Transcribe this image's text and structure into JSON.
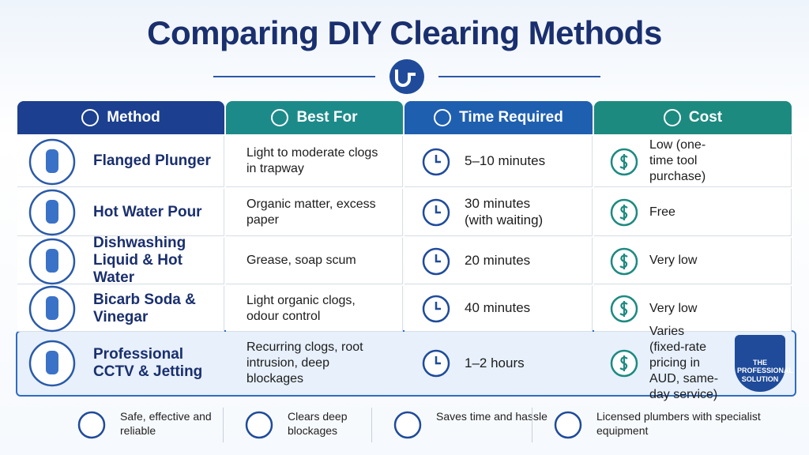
{
  "header": {
    "title": "Comparing DIY Clearing Methods"
  },
  "table": {
    "columns": [
      "Method",
      "Best For",
      "Time Required",
      "Cost"
    ],
    "rows": [
      [
        "Flanged Plunger",
        "Light to moderate clogs in trapway",
        "5–10 minutes",
        "Low (one-time tool purchase)"
      ],
      [
        "Hot Water Pour",
        "Organic matter, excess paper",
        "30 minutes (with waiting)",
        "Free"
      ],
      [
        "Dishwashing Liquid & Hot Water",
        "Grease, soap scum",
        "20 minutes",
        "Very low"
      ],
      [
        "Bicarb Soda & Vinegar",
        "Light organic clogs, odour control",
        "40 minutes",
        "Very low"
      ],
      [
        "Professional CCTV & Jetting",
        "Recurring clogs, root intrusion, deep blockages",
        "1–2 hours",
        "Varies (fixed-rate pricing in AUD, same-day service)"
      ]
    ],
    "badge": "THE PROFESSIONAL SOLUTION"
  },
  "footer": {
    "items": [
      "Safe, effective and reliable",
      "Clears deep blockages",
      "Saves time and hassle",
      "Licensed plumbers with specialist equipment"
    ]
  }
}
